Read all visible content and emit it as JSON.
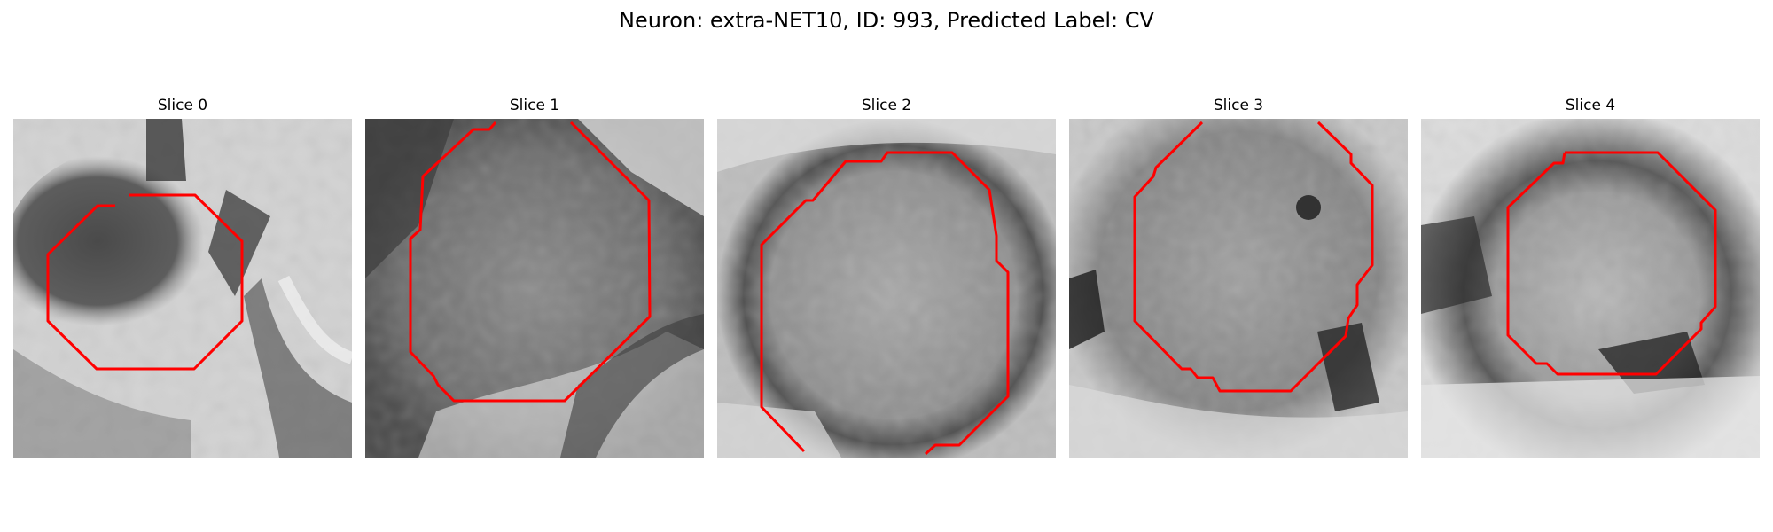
{
  "figure": {
    "title": "Neuron: extra-NET10, ID: 993, Predicted Label: CV"
  },
  "contour_color": "#ff0000",
  "slices": [
    {
      "title": "Slice 0",
      "image": "grayscale-em-crop-slice-0"
    },
    {
      "title": "Slice 1",
      "image": "grayscale-em-crop-slice-1"
    },
    {
      "title": "Slice 2",
      "image": "grayscale-em-crop-slice-2"
    },
    {
      "title": "Slice 3",
      "image": "grayscale-em-crop-slice-3"
    },
    {
      "title": "Slice 4",
      "image": "grayscale-em-crop-slice-4"
    }
  ]
}
